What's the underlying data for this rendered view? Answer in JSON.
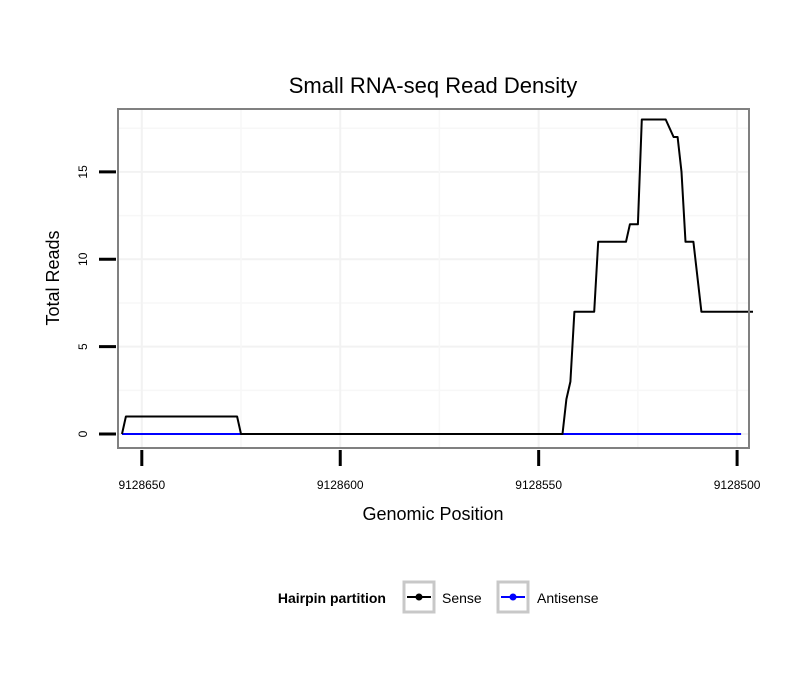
{
  "chart_data": {
    "type": "line",
    "title": "Small RNA-seq Read Density",
    "xlabel": "Genomic Position",
    "ylabel": "Total Reads",
    "xlim": [
      9128656,
      9128497
    ],
    "ylim": [
      -0.8,
      18.6
    ],
    "x_reversed": true,
    "x_ticks": [
      9128650,
      9128600,
      9128550,
      9128500
    ],
    "x_tick_labels": [
      "9128650",
      "9128600",
      "9128550",
      "9128500"
    ],
    "y_ticks": [
      0,
      5,
      10,
      15
    ],
    "y_tick_labels": [
      "0",
      "5",
      "10",
      "15"
    ],
    "grid": true,
    "legend": {
      "title": "Hairpin partition",
      "position": "bottom",
      "entries": [
        {
          "name": "Sense",
          "color": "#000000"
        },
        {
          "name": "Antisense",
          "color": "#0000ff"
        }
      ]
    },
    "series": [
      {
        "name": "Sense",
        "color": "#000000",
        "x": [
          9128655,
          9128654,
          9128653,
          9128627,
          9128626,
          9128625,
          9128544,
          9128543,
          9128542,
          9128541,
          9128540,
          9128536,
          9128535,
          9128528,
          9128527,
          9128525,
          9128524,
          9128523,
          9128518,
          9128516,
          9128515,
          9128514,
          9128513,
          9128512,
          9128511,
          9128509,
          9128508,
          9128496
        ],
        "y": [
          0,
          1,
          1,
          1,
          1,
          0,
          0,
          2,
          3,
          7,
          7,
          7,
          11,
          11,
          12,
          12,
          18,
          18,
          18,
          17,
          17,
          15,
          11,
          11,
          11,
          7,
          7,
          7
        ]
      },
      {
        "name": "Antisense",
        "color": "#0000ff",
        "x": [
          9128655,
          9128499
        ],
        "y": [
          0,
          0
        ]
      }
    ]
  }
}
